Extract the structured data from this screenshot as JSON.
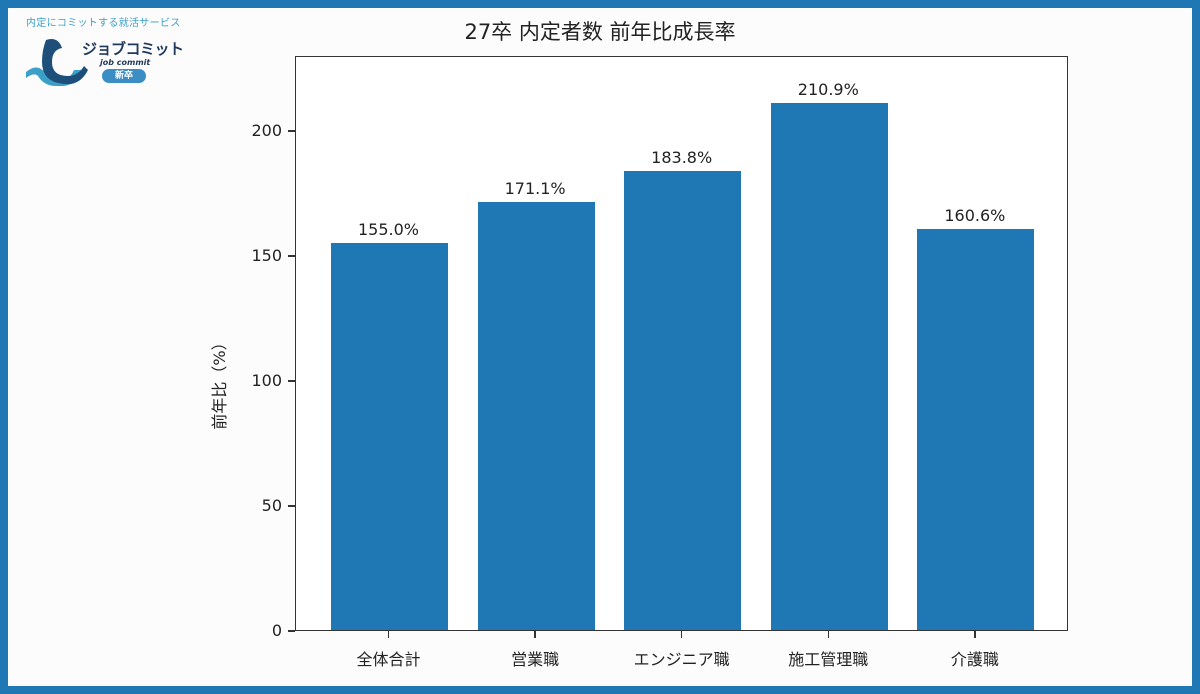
{
  "logo": {
    "tagline": "内定にコミットする就活サービス",
    "name": "ジョブコミット",
    "sub": "job commit",
    "badge": "新卒",
    "colors": {
      "dark": "#1e3a5a",
      "light": "#3aa0c8"
    }
  },
  "chart_data": {
    "type": "bar",
    "title": "27卒 内定者数 前年比成長率",
    "xlabel": "",
    "ylabel": "前年比（%）",
    "categories": [
      "全体合計",
      "営業職",
      "エンジニア職",
      "施工管理職",
      "介護職"
    ],
    "values": [
      155.0,
      171.1,
      183.8,
      210.9,
      160.6
    ],
    "value_labels": [
      "155.0%",
      "171.1%",
      "183.8%",
      "210.9%",
      "160.6%"
    ],
    "ylim": [
      0,
      230
    ],
    "yticks": [
      0,
      50,
      100,
      150,
      200
    ],
    "grid": false,
    "legend": null,
    "bar_color": "#1f77b4"
  },
  "frame": {
    "border_color": "#1f77b4"
  }
}
